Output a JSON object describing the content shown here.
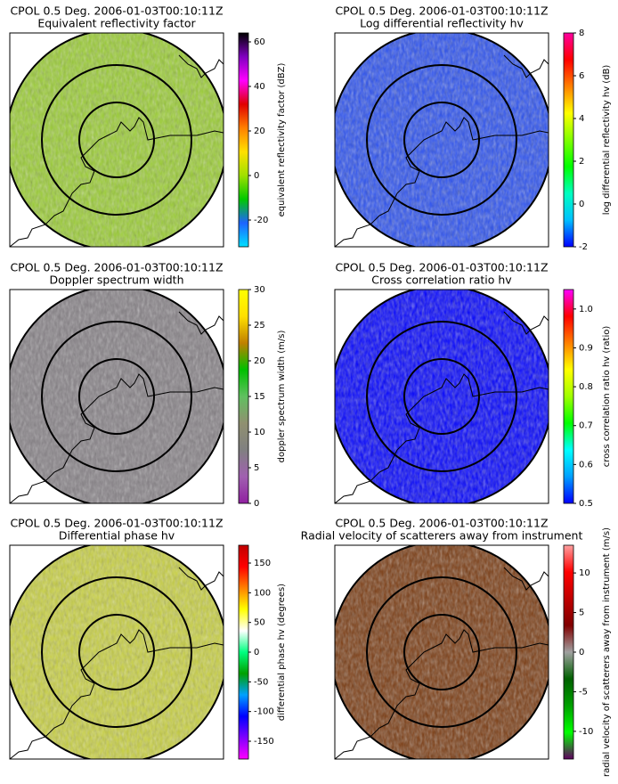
{
  "chart_data": [
    {
      "type": "radar-ppi",
      "title": "CPOL 0.5 Deg. 2006-01-03T00:10:11Z",
      "subtitle": "Equivalent reflectivity factor",
      "colorbar_label": "equivalent reflectivity factor (dBZ)",
      "clim": [
        -32,
        64
      ],
      "cticks": [
        -20,
        0,
        20,
        40,
        60
      ],
      "colormap": [
        "#00e0ff",
        "#1e64ff",
        "#00c800",
        "#a0e000",
        "#ffe000",
        "#ff8000",
        "#e00000",
        "#ff00ff",
        "#8000c0",
        "#000000"
      ]
    },
    {
      "type": "radar-ppi",
      "title": "CPOL 0.5 Deg. 2006-01-03T00:10:11Z",
      "subtitle": "Log differential reflectivity hv",
      "colorbar_label": "log differential reflectivity hv (dB)",
      "clim": [
        -2,
        8
      ],
      "cticks": [
        -2,
        0,
        2,
        4,
        6,
        8
      ],
      "colormap": [
        "#0000ff",
        "#00c0ff",
        "#00ffc0",
        "#00ff00",
        "#80ff00",
        "#ffff00",
        "#ff8000",
        "#ff0000",
        "#ff00a0"
      ]
    },
    {
      "type": "radar-ppi",
      "title": "CPOL 0.5 Deg. 2006-01-03T00:10:11Z",
      "subtitle": "Doppler spectrum width",
      "colorbar_label": "doppler spectrum width (m/s)",
      "clim": [
        0,
        30
      ],
      "cticks": [
        0,
        5,
        10,
        15,
        20,
        25,
        30
      ],
      "colormap": [
        "#9020a0",
        "#a060b0",
        "#808080",
        "#909070",
        "#60c060",
        "#00c000",
        "#c08000",
        "#ffe000",
        "#ffff00"
      ]
    },
    {
      "type": "radar-ppi",
      "title": "CPOL 0.5 Deg. 2006-01-03T00:10:11Z",
      "subtitle": "Cross correlation ratio hv",
      "colorbar_label": "cross correlation ratio hv (ratio)",
      "clim": [
        0.5,
        1.05
      ],
      "cticks": [
        0.5,
        0.6,
        0.7,
        0.8,
        0.9,
        {
          "value": 1.0,
          "label": "1.0"
        }
      ],
      "colormap": [
        "#0000ff",
        "#00a0ff",
        "#00ffff",
        "#00ff00",
        "#a0ff00",
        "#ffff00",
        "#ff8000",
        "#ff0000",
        "#ff00ff"
      ]
    },
    {
      "type": "radar-ppi",
      "title": "CPOL 0.5 Deg. 2006-01-03T00:10:11Z",
      "subtitle": "Differential phase hv",
      "colorbar_label": "differential phase hv (degrees)",
      "clim": [
        -180,
        180
      ],
      "cticks": [
        -150,
        -100,
        -50,
        0,
        50,
        100,
        150
      ],
      "colormap": [
        "#ff00ff",
        "#8000ff",
        "#0000ff",
        "#00a0ff",
        "#00a000",
        "#00ff80",
        "#ffffff",
        "#ffff00",
        "#ff8000",
        "#ff0000",
        "#c00000"
      ]
    },
    {
      "type": "radar-ppi",
      "title": "CPOL 0.5 Deg. 2006-01-03T00:10:11Z",
      "subtitle": "Radial velocity of scatterers away from instrument",
      "colorbar_label": "radial velocity of scatterers away from instrument (m/s)",
      "clim": [
        -13.5,
        13.5
      ],
      "cticks": [
        -10,
        -5,
        0,
        5,
        10
      ],
      "colormap": [
        "#600060",
        "#00ff00",
        "#00a000",
        "#006000",
        "#a0a0a0",
        "#800000",
        "#c00000",
        "#ff0000",
        "#ffa0a0"
      ]
    }
  ]
}
